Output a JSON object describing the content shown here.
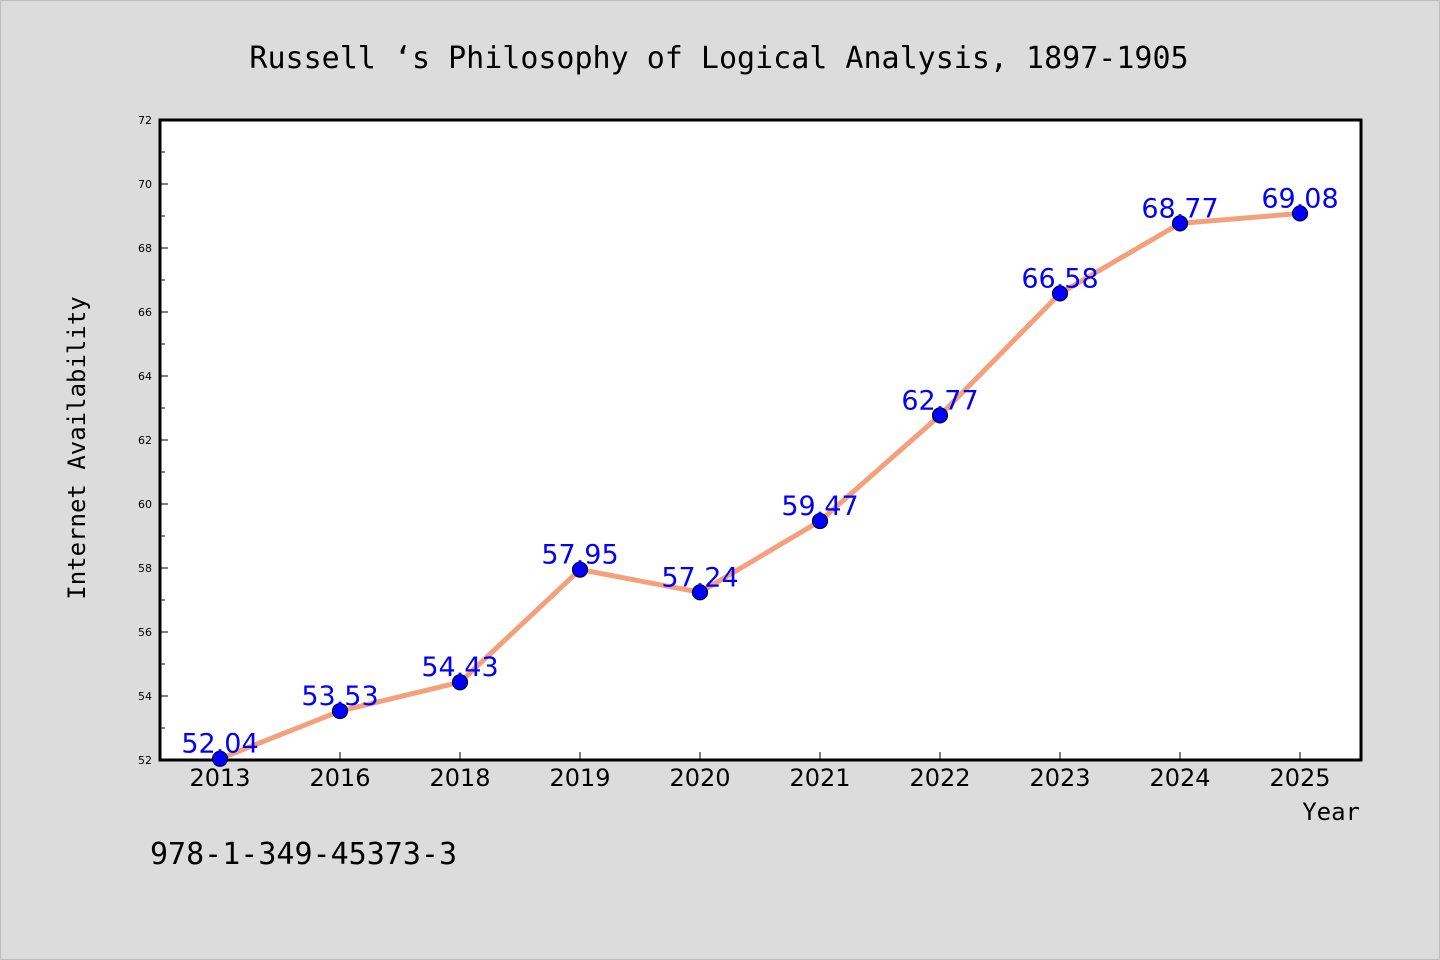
{
  "chart_data": {
    "type": "line",
    "title": "Russell ‘s Philosophy of Logical Analysis, 1897-1905",
    "xlabel": "Year",
    "ylabel": "Internet Availability",
    "categories": [
      "2013",
      "2016",
      "2018",
      "2019",
      "2020",
      "2021",
      "2022",
      "2023",
      "2024",
      "2025"
    ],
    "values": [
      52.04,
      53.53,
      54.43,
      57.95,
      57.24,
      59.47,
      62.77,
      66.58,
      68.77,
      69.08
    ],
    "data_labels": [
      "52.04",
      "53.53",
      "54.43",
      "57.95",
      "57.24",
      "59.47",
      "62.77",
      "66.58",
      "68.77",
      "69.08"
    ],
    "ylim": [
      52,
      72
    ],
    "y_ticks": [
      "52",
      "54",
      "56",
      "58",
      "60",
      "62",
      "64",
      "66",
      "68",
      "70",
      "72"
    ],
    "grid": false,
    "line_color": "#f4a07c",
    "marker_color": "#0000ff",
    "label_color": "#0000ff"
  },
  "footnote": "978-1-349-45373-3"
}
